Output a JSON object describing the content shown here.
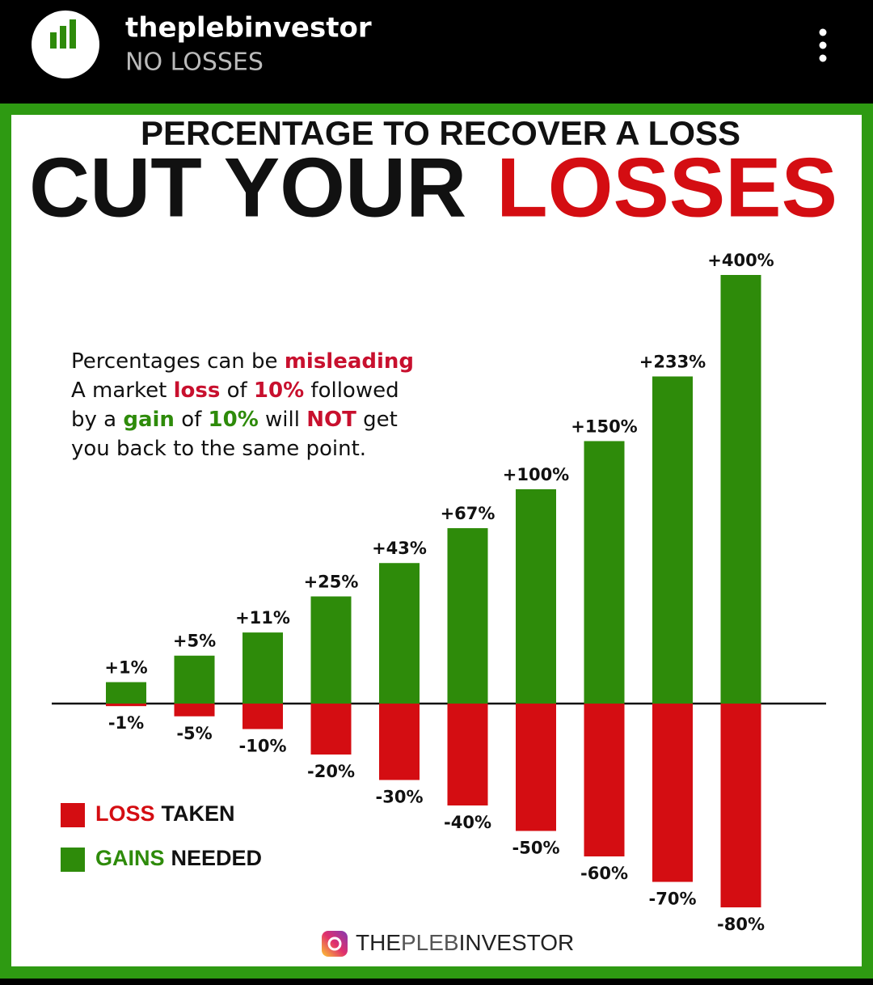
{
  "header": {
    "username": "theplebinvestor",
    "subtitle": "NO LOSSES"
  },
  "chart_data": {
    "type": "bar",
    "title": "PERCENTAGE TO RECOVER A LOSS",
    "headline": [
      "CUT YOUR",
      "LOSSES"
    ],
    "annotation": [
      [
        {
          "text": "Percentages can be ",
          "color": "#111111"
        },
        {
          "text": "misleading",
          "color": "#c8102e"
        }
      ],
      [
        {
          "text": "A market ",
          "color": "#111111"
        },
        {
          "text": "loss",
          "color": "#c8102e"
        },
        {
          "text": " of ",
          "color": "#111111"
        },
        {
          "text": "10%",
          "color": "#c8102e"
        },
        {
          "text": " followed",
          "color": "#111111"
        }
      ],
      [
        {
          "text": "by a ",
          "color": "#111111"
        },
        {
          "text": "gain",
          "color": "#2e8b0a"
        },
        {
          "text": " of ",
          "color": "#111111"
        },
        {
          "text": "10%",
          "color": "#2e8b0a"
        },
        {
          "text": " will ",
          "color": "#111111"
        },
        {
          "text": "NOT",
          "color": "#c8102e"
        },
        {
          "text": " get",
          "color": "#111111"
        }
      ],
      [
        {
          "text": "you back to the same point.",
          "color": "#111111"
        }
      ]
    ],
    "series": [
      {
        "name": [
          "LOSS",
          "TAKEN"
        ],
        "color": "#d40d12",
        "values": [
          -1,
          -5,
          -10,
          -20,
          -30,
          -40,
          -50,
          -60,
          -70,
          -80
        ],
        "value_labels": [
          "-1%",
          "-5%",
          "-10%",
          "-20%",
          "-30%",
          "-40%",
          "-50%",
          "-60%",
          "-70%",
          "-80%"
        ]
      },
      {
        "name": [
          "GAINS",
          "NEEDED"
        ],
        "color": "#2e8b0a",
        "values": [
          1,
          5,
          11,
          25,
          43,
          67,
          100,
          150,
          233,
          400
        ],
        "value_labels": [
          "+1%",
          "+5%",
          "+11%",
          "+25%",
          "+43%",
          "+67%",
          "+100%",
          "+150%",
          "+233%",
          "+400%"
        ]
      }
    ],
    "footer": [
      "THE",
      "PLEB",
      "INVESTOR"
    ]
  }
}
